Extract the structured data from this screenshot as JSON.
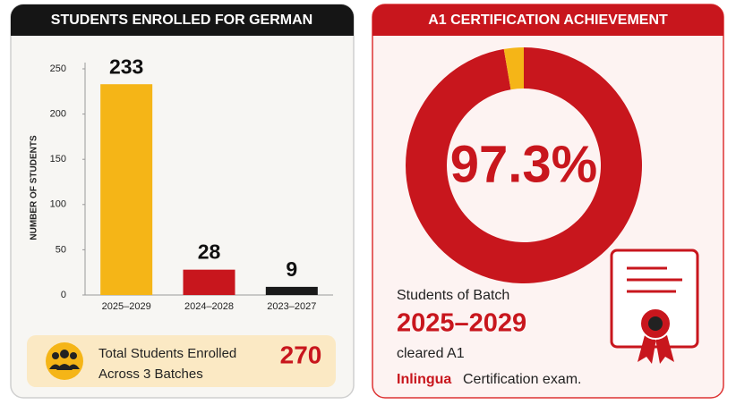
{
  "chart_data": [
    {
      "type": "bar",
      "title": "STUDENTS ENROLLED FOR GERMAN",
      "y_label": "NUMBER OF STUDENTS",
      "categories": [
        "2025–2029",
        "2024–2028",
        "2023–2027"
      ],
      "values": [
        233,
        28,
        9
      ],
      "colors": [
        "#f5b517",
        "#c8161d",
        "#1a1a1a"
      ],
      "ylim": [
        0,
        250
      ],
      "yticks": [
        0,
        50,
        100,
        150,
        200,
        250
      ],
      "grid": false,
      "total_label": [
        "Total Students Enrolled",
        "Across 3 Batches"
      ],
      "total": 270
    },
    {
      "type": "donut",
      "title": "A1 CERTIFICATION ACHIEVEMENT",
      "values": [
        97.3,
        2.7
      ],
      "value_labels": [
        "97.3%",
        null
      ],
      "colors": [
        "#c8161d",
        "#f5b517"
      ],
      "note": [
        "Students of Batch",
        "2025–2029",
        "cleared A1"
      ],
      "brand": "Inlingua",
      "exam": "Certification exam."
    }
  ]
}
